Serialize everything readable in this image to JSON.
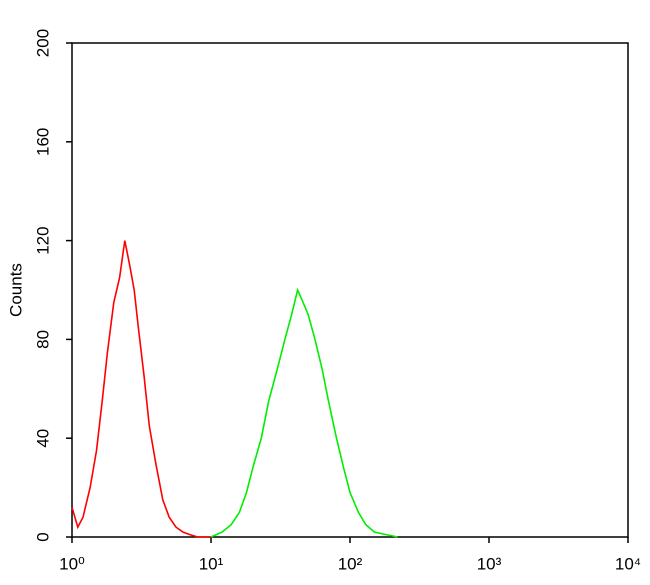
{
  "chart_data": {
    "type": "line",
    "ylabel": "Counts",
    "xscale": "log",
    "xlim": [
      1,
      10000
    ],
    "ylim": [
      0,
      200
    ],
    "xticks": [
      {
        "value": 1,
        "label": "10⁰"
      },
      {
        "value": 10,
        "label": "10¹"
      },
      {
        "value": 100,
        "label": "10²"
      },
      {
        "value": 1000,
        "label": "10³"
      },
      {
        "value": 10000,
        "label": "10⁴"
      }
    ],
    "yticks": [
      0,
      40,
      80,
      120,
      160,
      200
    ],
    "series": [
      {
        "color": "#ff0000",
        "x": [
          1,
          1.1,
          1.2,
          1.35,
          1.5,
          1.65,
          1.8,
          2,
          2.2,
          2.4,
          2.6,
          2.8,
          3,
          3.3,
          3.6,
          4,
          4.5,
          5,
          5.6,
          6.3,
          7,
          8,
          9,
          10
        ],
        "values": [
          12,
          4,
          8,
          20,
          35,
          55,
          75,
          95,
          105,
          120,
          110,
          100,
          85,
          65,
          45,
          30,
          15,
          8,
          4,
          2,
          1,
          0,
          0,
          0
        ]
      },
      {
        "color": "#00ee00",
        "x": [
          10,
          12,
          14,
          16,
          18,
          20,
          23,
          26,
          30,
          34,
          38,
          42,
          46,
          50,
          56,
          63,
          70,
          80,
          90,
          100,
          115,
          130,
          150,
          180,
          220
        ],
        "values": [
          0,
          2,
          5,
          10,
          18,
          28,
          40,
          55,
          68,
          80,
          90,
          100,
          95,
          90,
          80,
          68,
          55,
          40,
          28,
          18,
          10,
          5,
          2,
          1,
          0
        ]
      }
    ]
  }
}
